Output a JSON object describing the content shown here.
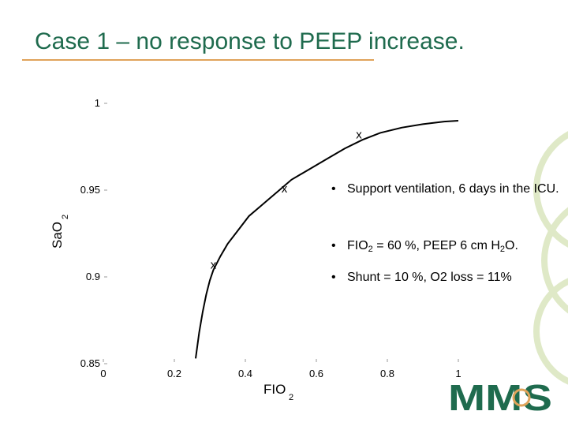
{
  "title": "Case 1 – no response to PEEP increase.",
  "bullets": [
    {
      "text": "Support ventilation, 6 days in the ICU."
    },
    {
      "pre": "FIO",
      "sub1": "2",
      "mid": " = 60 %, PEEP 6 cm H",
      "sub2": "2",
      "post": "O."
    },
    {
      "text": "Shunt = 10 %, O2 loss  = 11%"
    }
  ],
  "logo_text": "MMS",
  "colors": {
    "title": "#1f6b4e",
    "rule": "#e0a35a",
    "logo": "#1f6b4e",
    "deco": "#dfe9c7"
  },
  "chart_data": {
    "type": "line",
    "title": "",
    "xlabel": "FIO",
    "xlabel_sub": "2",
    "ylabel": "SaO",
    "ylabel_sub": "2",
    "xlim": [
      0,
      1.1
    ],
    "ylim": [
      0.85,
      1.0
    ],
    "x_ticks": [
      0,
      0.2,
      0.4,
      0.6,
      0.8,
      1
    ],
    "x_tick_labels": [
      "0",
      "0.2",
      "0.4",
      "0.6",
      "0.8",
      "1"
    ],
    "y_ticks": [
      0.85,
      0.9,
      0.95,
      1
    ],
    "y_tick_labels": [
      "0.85",
      "0.9",
      "0.95",
      "1"
    ],
    "grid": false,
    "series": [
      {
        "x": [
          0.26,
          0.27,
          0.28,
          0.29,
          0.3,
          0.31,
          0.33,
          0.35,
          0.38,
          0.41,
          0.45,
          0.49,
          0.53,
          0.58,
          0.63,
          0.68,
          0.73,
          0.78,
          0.84,
          0.9,
          0.96,
          1.0
        ],
        "y": [
          0.853,
          0.868,
          0.88,
          0.89,
          0.898,
          0.904,
          0.912,
          0.919,
          0.927,
          0.935,
          0.942,
          0.949,
          0.956,
          0.962,
          0.968,
          0.974,
          0.979,
          0.983,
          0.986,
          0.988,
          0.9895,
          0.99
        ]
      }
    ],
    "markers": [
      {
        "x": 0.31,
        "y": 0.907,
        "label": "x"
      },
      {
        "x": 0.51,
        "y": 0.951,
        "label": "x"
      },
      {
        "x": 0.72,
        "y": 0.982,
        "label": "x"
      }
    ]
  }
}
